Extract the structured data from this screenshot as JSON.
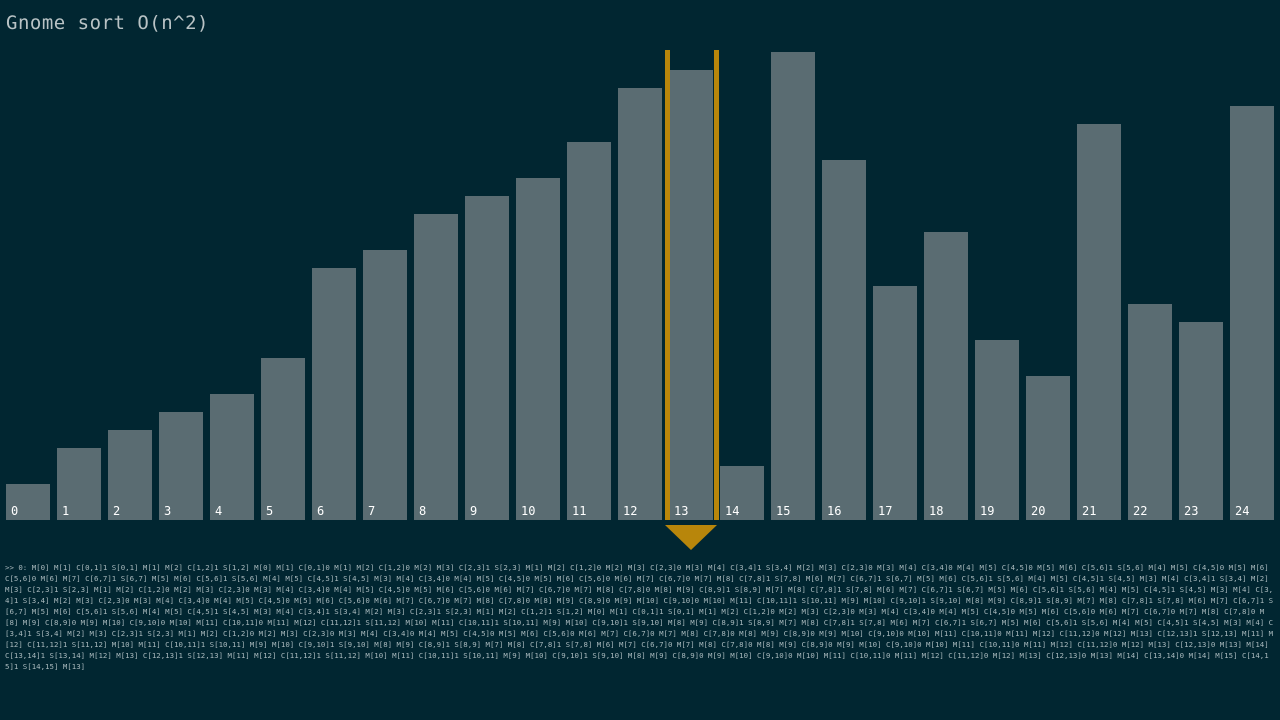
{
  "title": "Gnome sort O(n^2)",
  "bars": [
    {
      "label": "0",
      "value": 36
    },
    {
      "label": "1",
      "value": 72
    },
    {
      "label": "2",
      "value": 90
    },
    {
      "label": "3",
      "value": 108
    },
    {
      "label": "4",
      "value": 126
    },
    {
      "label": "5",
      "value": 162
    },
    {
      "label": "6",
      "value": 252
    },
    {
      "label": "7",
      "value": 270
    },
    {
      "label": "8",
      "value": 306
    },
    {
      "label": "9",
      "value": 324
    },
    {
      "label": "10",
      "value": 342
    },
    {
      "label": "11",
      "value": 378
    },
    {
      "label": "12",
      "value": 432
    },
    {
      "label": "13",
      "value": 450
    },
    {
      "label": "14",
      "value": 54
    },
    {
      "label": "15",
      "value": 468
    },
    {
      "label": "16",
      "value": 360
    },
    {
      "label": "17",
      "value": 234
    },
    {
      "label": "18",
      "value": 288
    },
    {
      "label": "19",
      "value": 180
    },
    {
      "label": "20",
      "value": 144
    },
    {
      "label": "21",
      "value": 396
    },
    {
      "label": "22",
      "value": 216
    },
    {
      "label": "23",
      "value": 198
    },
    {
      "label": "24",
      "value": 414
    }
  ],
  "max_value": 470,
  "current_index": 13,
  "colors": {
    "background": "#012631",
    "bar": "#5a6c72",
    "highlight": "#b8860b",
    "title": "#b9c3c5",
    "log": "#a9b9bd"
  },
  "log_text": ">> 0: M[0] M[1] C[0,1]1 S[0,1] M[1] M[2] C[1,2]1 S[1,2] M[0] M[1] C[0,1]0 M[1] M[2] C[1,2]0 M[2] M[3] C[2,3]1 S[2,3] M[1] M[2] C[1,2]0 M[2] M[3] C[2,3]0 M[3] M[4] C[3,4]1 S[3,4] M[2] M[3] C[2,3]0 M[3] M[4] C[3,4]0 M[4] M[5] C[4,5]0 M[5] M[6] C[5,6]1 S[5,6] M[4] M[5] C[4,5]0 M[5] M[6] C[5,6]0 M[6] M[7] C[6,7]1 S[6,7] M[5] M[6] C[5,6]1 S[5,6] M[4] M[5] C[4,5]1 S[4,5] M[3] M[4] C[3,4]0 M[4] M[5] C[4,5]0 M[5] M[6] C[5,6]0 M[6] M[7] C[6,7]0 M[7] M[8] C[7,8]1 S[7,8] M[6] M[7] C[6,7]1 S[6,7] M[5] M[6] C[5,6]1 S[5,6] M[4] M[5] C[4,5]1 S[4,5] M[3] M[4] C[3,4]1 S[3,4] M[2] M[3] C[2,3]1 S[2,3] M[1] M[2] C[1,2]0 M[2] M[3] C[2,3]0 M[3] M[4] C[3,4]0 M[4] M[5] C[4,5]0 M[5] M[6] C[5,6]0 M[6] M[7] C[6,7]0 M[7] M[8] C[7,8]0 M[8] M[9] C[8,9]1 S[8,9] M[7] M[8] C[7,8]1 S[7,8] M[6] M[7] C[6,7]1 S[6,7] M[5] M[6] C[5,6]1 S[5,6] M[4] M[5] C[4,5]1 S[4,5] M[3] M[4] C[3,4]1 S[3,4] M[2] M[3] C[2,3]0 M[3] M[4] C[3,4]0 M[4] M[5] C[4,5]0 M[5] M[6] C[5,6]0 M[6] M[7] C[6,7]0 M[7] M[8] C[7,8]0 M[8] M[9] C[8,9]0 M[9] M[10] C[9,10]0 M[10] M[11] C[10,11]1 S[10,11] M[9] M[10] C[9,10]1 S[9,10] M[8] M[9] C[8,9]1 S[8,9] M[7] M[8] C[7,8]1 S[7,8] M[6] M[7] C[6,7]1 S[6,7] M[5] M[6] C[5,6]1 S[5,6] M[4] M[5] C[4,5]1 S[4,5] M[3] M[4] C[3,4]1 S[3,4] M[2] M[3] C[2,3]1 S[2,3] M[1] M[2] C[1,2]1 S[1,2] M[0] M[1] C[0,1]1 S[0,1] M[1] M[2] C[1,2]0 M[2] M[3] C[2,3]0 M[3] M[4] C[3,4]0 M[4] M[5] C[4,5]0 M[5] M[6] C[5,6]0 M[6] M[7] C[6,7]0 M[7] M[8] C[7,8]0 M[8] M[9] C[8,9]0 M[9] M[10] C[9,10]0 M[10] M[11] C[10,11]0 M[11] M[12] C[11,12]1 S[11,12] M[10] M[11] C[10,11]1 S[10,11] M[9] M[10] C[9,10]1 S[9,10] M[8] M[9] C[8,9]1 S[8,9] M[7] M[8] C[7,8]1 S[7,8] M[6] M[7] C[6,7]1 S[6,7] M[5] M[6] C[5,6]1 S[5,6] M[4] M[5] C[4,5]1 S[4,5] M[3] M[4] C[3,4]1 S[3,4] M[2] M[3] C[2,3]1 S[2,3] M[1] M[2] C[1,2]0 M[2] M[3] C[2,3]0 M[3] M[4] C[3,4]0 M[4] M[5] C[4,5]0 M[5] M[6] C[5,6]0 M[6] M[7] C[6,7]0 M[7] M[8] C[7,8]0 M[8] M[9] C[8,9]0 M[9] M[10] C[9,10]0 M[10] M[11] C[10,11]0 M[11] M[12] C[11,12]0 M[12] M[13] C[12,13]1 S[12,13] M[11] M[12] C[11,12]1 S[11,12] M[10] M[11] C[10,11]1 S[10,11] M[9] M[10] C[9,10]1 S[9,10] M[8] M[9] C[8,9]1 S[8,9] M[7] M[8] C[7,8]1 S[7,8] M[6] M[7] C[6,7]0 M[7] M[8] C[7,8]0 M[8] M[9] C[8,9]0 M[9] M[10] C[9,10]0 M[10] M[11] C[10,11]0 M[11] M[12] C[11,12]0 M[12] M[13] C[12,13]0 M[13] M[14] C[13,14]1 S[13,14] M[12] M[13] C[12,13]1 S[12,13] M[11] M[12] C[11,12]1 S[11,12] M[10] M[11] C[10,11]1 S[10,11] M[9] M[10] C[9,10]1 S[9,10] M[8] M[9] C[8,9]0 M[9] M[10] C[9,10]0 M[10] M[11] C[10,11]0 M[11] M[12] C[11,12]0 M[12] M[13] C[12,13]0 M[13] M[14] C[13,14]0 M[14] M[15] C[14,15]1 S[14,15] M[13]"
}
